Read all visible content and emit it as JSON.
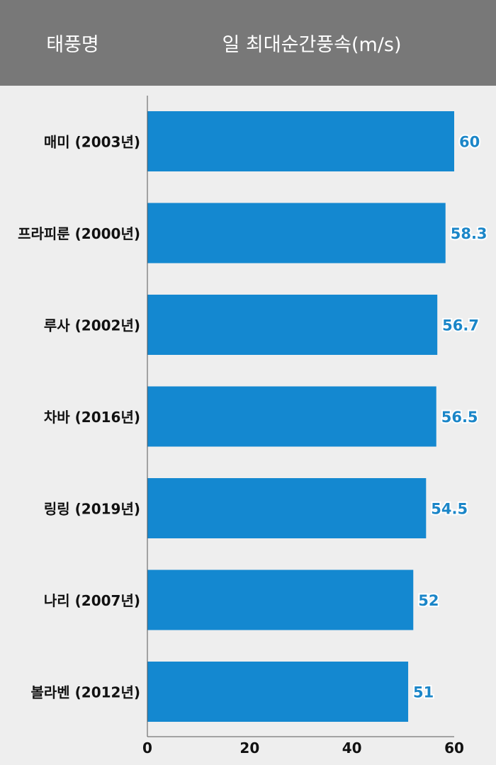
{
  "header": {
    "name_col": "태풍명",
    "value_col": "일 최대순간풍속(m/s)"
  },
  "colors": {
    "bar": "#1488d0",
    "value_label": "#1b86c8",
    "header_bg": "#787878",
    "background": "#eeeeee"
  },
  "chart_data": {
    "type": "bar",
    "orientation": "horizontal",
    "categories": [
      "매미 (2003년)",
      "프라피룬 (2000년)",
      "루사 (2002년)",
      "차바 (2016년)",
      "링링 (2019년)",
      "나리 (2007년)",
      "볼라벤 (2012년)"
    ],
    "values": [
      60,
      58.3,
      56.7,
      56.5,
      54.5,
      52,
      51
    ],
    "value_labels": [
      "60",
      "58.3",
      "56.7",
      "56.5",
      "54.5",
      "52",
      "51"
    ],
    "xlim": [
      0,
      60
    ],
    "xticks": [
      0,
      20,
      40,
      60
    ],
    "xtick_labels": [
      "0",
      "20",
      "40",
      "60"
    ],
    "grid": false
  }
}
